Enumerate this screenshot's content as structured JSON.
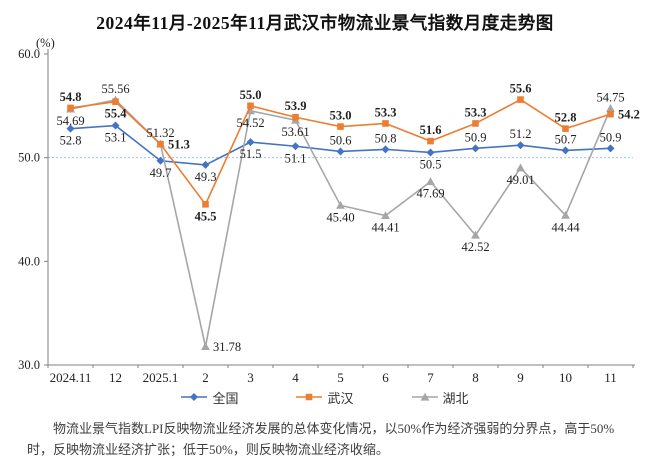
{
  "title": "2024年11月-2025年11月武汉市物流业景气指数月度走势图",
  "y_axis_unit": "(%)",
  "chart_data": {
    "type": "line",
    "categories": [
      "2024.11",
      "12",
      "2025.1",
      "2",
      "3",
      "4",
      "5",
      "6",
      "7",
      "8",
      "9",
      "10",
      "11"
    ],
    "ylim": [
      30,
      60
    ],
    "ytick_labels": [
      "60.0",
      "50.0",
      "40.0",
      "30.0"
    ],
    "yticks": [
      60,
      50,
      40,
      30
    ],
    "reference_line_y": 50,
    "grid": false,
    "legend_position": "bottom",
    "axis_color": "#808080",
    "reference_line_color": "#9DC3E6",
    "label_color": "#1f1f1f",
    "draw_order": [
      0,
      2,
      1
    ],
    "series": [
      {
        "name": "全国",
        "color": "#4472C4",
        "marker": "diamond",
        "bold_labels": false,
        "values": [
          52.8,
          53.1,
          49.7,
          49.3,
          51.5,
          51.1,
          50.6,
          50.8,
          50.5,
          50.9,
          51.2,
          50.7,
          50.9
        ],
        "labels": [
          "52.8",
          "53.1",
          "49.7",
          "49.3",
          "51.5",
          "51.1",
          "50.6",
          "50.8",
          "50.5",
          "50.9",
          "51.2",
          "50.7",
          "50.9"
        ],
        "label_pos": [
          "below",
          "below",
          "below",
          "below",
          "below",
          "below",
          "above",
          "above",
          "below",
          "above",
          "above",
          "above",
          "above"
        ]
      },
      {
        "name": "武汉",
        "color": "#ED7D31",
        "marker": "square",
        "bold_labels": true,
        "values": [
          54.8,
          55.4,
          51.3,
          45.5,
          55.0,
          53.9,
          53.0,
          53.3,
          51.6,
          53.3,
          55.6,
          52.8,
          54.2
        ],
        "labels": [
          "54.8",
          "55.4",
          "51.3",
          "45.5",
          "55.0",
          "53.9",
          "53.0",
          "53.3",
          "51.6",
          "53.3",
          "55.6",
          "52.8",
          "54.2"
        ],
        "label_pos": [
          "above",
          "below",
          "right",
          "below",
          "above",
          "above",
          "above",
          "above",
          "above",
          "above",
          "above",
          "above",
          "right"
        ]
      },
      {
        "name": "湖北",
        "color": "#A6A6A6",
        "marker": "triangle",
        "bold_labels": false,
        "values": [
          54.69,
          55.56,
          51.32,
          31.78,
          54.52,
          53.61,
          45.4,
          44.41,
          47.69,
          42.52,
          49.01,
          44.44,
          54.75
        ],
        "labels": [
          "54.69",
          "55.56",
          "51.32",
          "31.78",
          "54.52",
          "53.61",
          "45.40",
          "44.41",
          "47.69",
          "42.52",
          "49.01",
          "44.44",
          "54.75"
        ],
        "label_pos": [
          "below",
          "above",
          "above",
          "right",
          "below",
          "below",
          "below",
          "below",
          "below",
          "below",
          "below",
          "below",
          "above"
        ]
      }
    ]
  },
  "footer": "物流业景气指数LPI反映物流业经济发展的总体变化情况，以50%作为经济强弱的分界点，高于50%时，反映物流业经济扩张；低于50%，则反映物流业经济收缩。"
}
